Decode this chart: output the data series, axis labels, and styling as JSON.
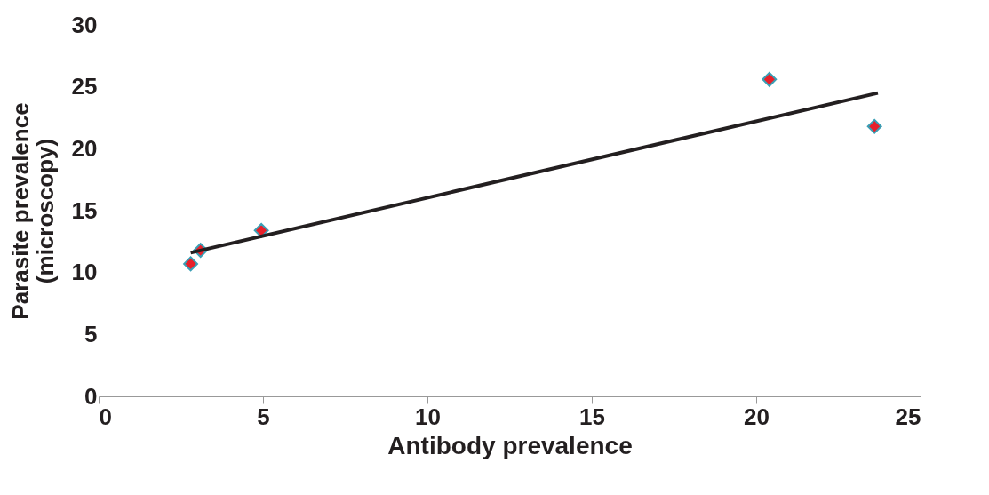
{
  "chart_data": {
    "type": "scatter",
    "xlabel": "Antibody prevalence",
    "ylabel": "Parasite prevalence (microscopy)",
    "xlim": [
      0,
      25
    ],
    "xticks": [
      0,
      5,
      10,
      15,
      20,
      25
    ],
    "ylim": [
      0,
      30
    ],
    "yticks": [
      0,
      5,
      10,
      15,
      20,
      25,
      30
    ],
    "grid": false,
    "series": [
      {
        "marker": "diamond",
        "color": "#e8202a",
        "x": [
          2.8,
          3.1,
          4.95,
          20.4,
          23.6
        ],
        "values": [
          10.7,
          11.8,
          13.4,
          25.6,
          21.8
        ]
      },
      {
        "type": "line",
        "color": "#231f20",
        "x": [
          2.8,
          23.7
        ],
        "values": [
          11.6,
          24.5
        ]
      }
    ]
  }
}
